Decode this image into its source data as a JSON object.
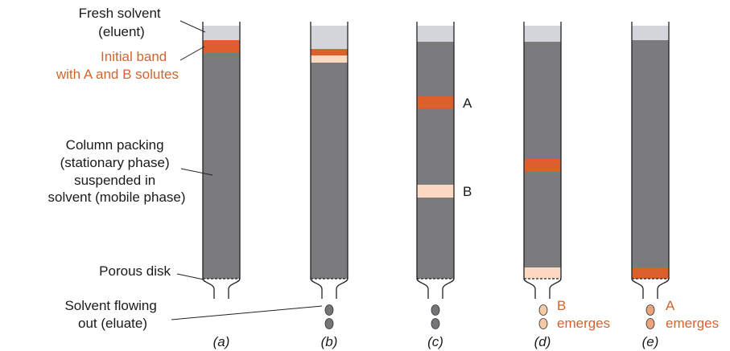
{
  "labels": {
    "fresh_solvent": [
      "Fresh solvent",
      "(eluent)"
    ],
    "initial_band": [
      "Initial band",
      "with A and B solutes"
    ],
    "column_packing": [
      "Column packing",
      "(stationary phase)",
      "suspended in",
      "solvent (mobile phase)"
    ],
    "porous_disk": "Porous disk",
    "solvent_flowing": [
      "Solvent flowing",
      "out (eluate)"
    ],
    "band_a": "A",
    "band_b": "B",
    "b_emerges": [
      "B",
      "emerges"
    ],
    "a_emerges": [
      "A",
      "emerges"
    ]
  },
  "captions": [
    "a",
    "b",
    "c",
    "d",
    "e"
  ],
  "colors": {
    "packing": "#7b7b7d",
    "solvent": "#d4d5da",
    "solute_a": "#dd5f2b",
    "solute_b": "#fbd9c2",
    "label_orange": "#d4632e",
    "text": "#1a1a1a",
    "droplet_dark": "#757577",
    "droplet_light": "#f7c9a6"
  }
}
